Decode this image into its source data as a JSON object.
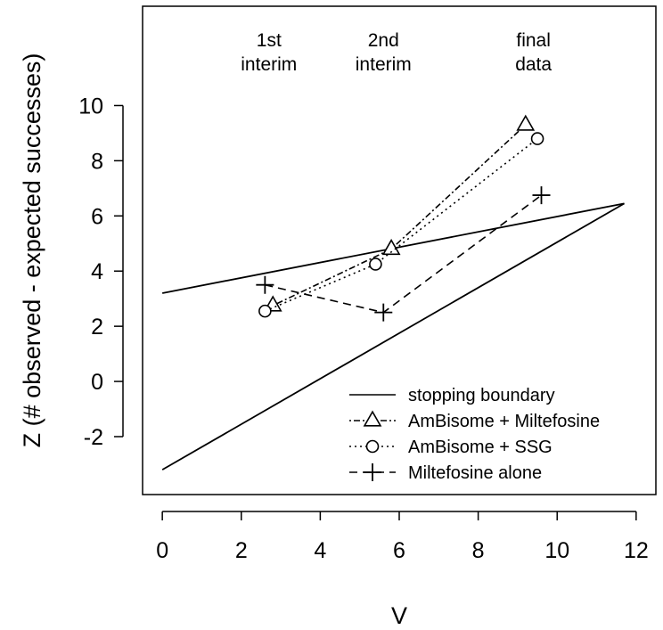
{
  "chart_data": {
    "type": "line",
    "xlabel": "V",
    "ylabel": "Z (# observed  - expected successes)",
    "xlim": [
      -0.5,
      12.5
    ],
    "ylim": [
      -4.1,
      13.6
    ],
    "x_ticks": [
      0,
      2,
      4,
      6,
      8,
      10,
      12
    ],
    "y_ticks": [
      -2,
      0,
      2,
      4,
      6,
      8,
      10
    ],
    "grid": false,
    "legend_position": "bottom-right",
    "annotations": [
      {
        "lines": [
          "1st",
          "interim"
        ],
        "x": 2.7
      },
      {
        "lines": [
          "2nd",
          "interim"
        ],
        "x": 5.6
      },
      {
        "lines": [
          "final",
          "data"
        ],
        "x": 9.4
      }
    ],
    "boundary": {
      "name": "stopping boundary",
      "upper": [
        [
          0,
          3.2
        ],
        [
          11.7,
          6.45
        ]
      ],
      "lower": [
        [
          0,
          -3.2
        ],
        [
          11.7,
          6.45
        ]
      ]
    },
    "series": [
      {
        "name": "AmBisome + Miltefosine",
        "marker": "triangle",
        "dash": "2 3 7 3",
        "points": [
          [
            2.8,
            2.75
          ],
          [
            5.8,
            4.8
          ],
          [
            9.2,
            9.3
          ]
        ]
      },
      {
        "name": "AmBisome + SSG",
        "marker": "circle",
        "dash": "2 4",
        "points": [
          [
            2.6,
            2.55
          ],
          [
            5.4,
            4.25
          ],
          [
            9.5,
            8.8
          ]
        ]
      },
      {
        "name": "Miltefosine alone",
        "marker": "plus",
        "dash": "9 6",
        "points": [
          [
            2.6,
            3.5
          ],
          [
            5.6,
            2.5
          ],
          [
            9.6,
            6.75
          ]
        ]
      }
    ]
  }
}
